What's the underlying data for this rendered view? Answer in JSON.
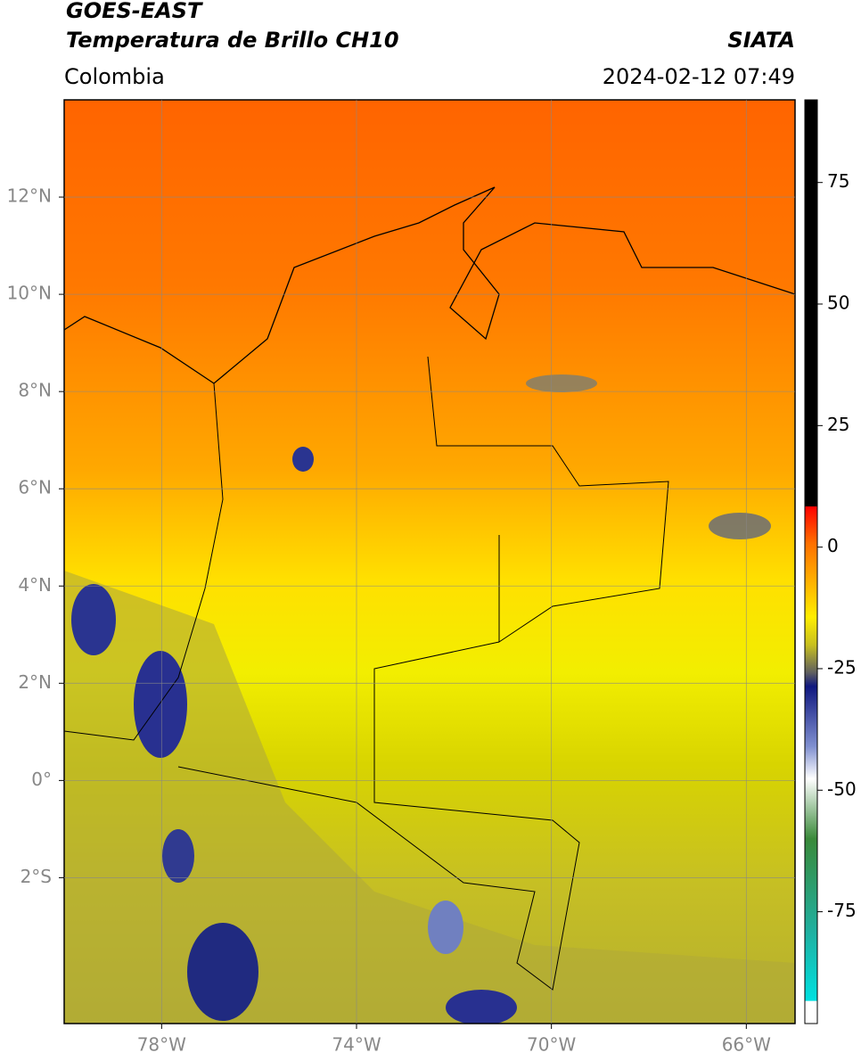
{
  "header": {
    "title": "GOES-EAST",
    "subtitle": "Temperatura de Brillo CH10",
    "region": "Colombia",
    "source": "SIATA",
    "datetime": "2024-02-12 07:49"
  },
  "map": {
    "lonlim": [
      -80,
      -65
    ],
    "latlim": [
      -5,
      14
    ],
    "lonticks": [
      {
        "value": -78,
        "label": "78°W"
      },
      {
        "value": -74,
        "label": "74°W"
      },
      {
        "value": -70,
        "label": "70°W"
      },
      {
        "value": -66,
        "label": "66°W"
      }
    ],
    "latticks": [
      {
        "value": 12,
        "label": "12°N"
      },
      {
        "value": 10,
        "label": "10°N"
      },
      {
        "value": 8,
        "label": "8°N"
      },
      {
        "value": 6,
        "label": "6°N"
      },
      {
        "value": 4,
        "label": "4°N"
      },
      {
        "value": 2,
        "label": "2°N"
      },
      {
        "value": 0,
        "label": "0°"
      },
      {
        "value": -2,
        "label": "2°S"
      }
    ]
  },
  "colorbar": {
    "lim": [
      -98,
      92
    ],
    "ticks": [
      75,
      50,
      25,
      0,
      -25,
      -50,
      -75
    ]
  }
}
